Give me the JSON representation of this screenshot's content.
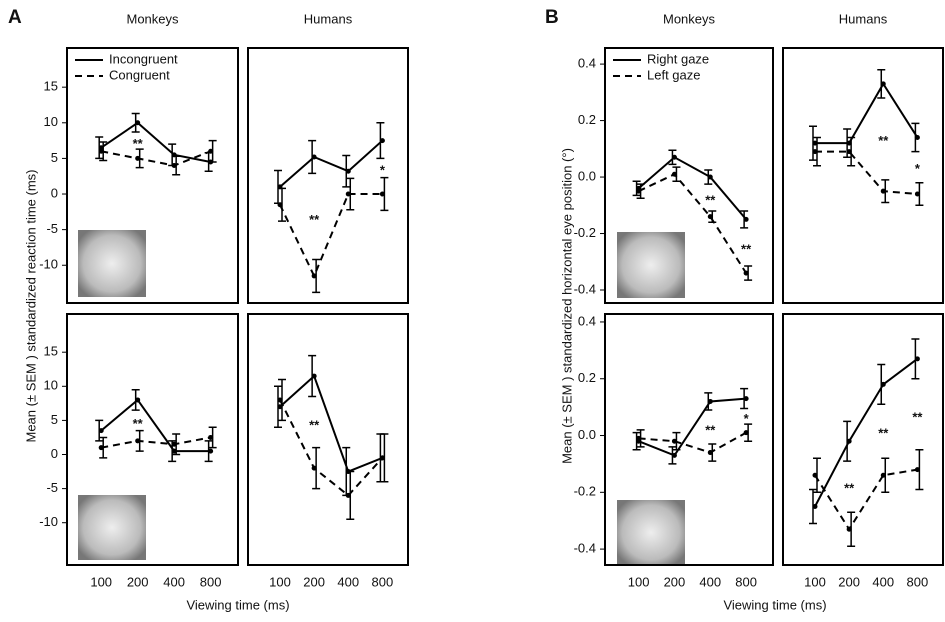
{
  "panels": [
    {
      "label": "A",
      "ylabel": "Mean (± SEM ) standardized reaction time (ms)",
      "xlabel": "Viewing time (ms)"
    },
    {
      "label": "B",
      "ylabel": "Mean (± SEM ) standardized horizontal eye position (°)",
      "xlabel": "Viewing time (ms)"
    }
  ],
  "chart_data": [
    {
      "type": "line",
      "title": "Monkeys",
      "categories": [
        "100",
        "200",
        "400",
        "800"
      ],
      "show_xticklabels": false,
      "color": "#000000",
      "ylim": [
        -15.3,
        20.5
      ],
      "yticks": [
        -10,
        -5,
        0,
        5,
        10,
        15
      ],
      "legend": "upper left",
      "series": [
        {
          "name": "Incongruent",
          "dashed": false,
          "values": [
            6.5,
            10,
            5.5,
            4.5
          ],
          "errors": [
            1.5,
            1.3,
            1.5,
            1.3
          ]
        },
        {
          "name": "Congruent",
          "dashed": true,
          "values": [
            6,
            5,
            4,
            6
          ],
          "errors": [
            1.3,
            1.3,
            1.3,
            1.5
          ]
        }
      ],
      "annotations": [
        {
          "text": "**",
          "x": "200"
        }
      ]
    },
    {
      "type": "line",
      "title": "Humans",
      "categories": [
        "100",
        "200",
        "400",
        "800"
      ],
      "show_xticklabels": false,
      "color": "#000000",
      "ylim": [
        -15.3,
        20.5
      ],
      "series": [
        {
          "dashed": false,
          "values": [
            1,
            5.2,
            3.2,
            7.5
          ],
          "errors": [
            2.3,
            2.3,
            2.2,
            2.5
          ]
        },
        {
          "dashed": true,
          "values": [
            -1.5,
            -11.5,
            0,
            0
          ],
          "errors": [
            2.3,
            2.3,
            2.2,
            2.3
          ]
        }
      ],
      "annotations": [
        {
          "text": "**",
          "x": "200"
        },
        {
          "text": "*",
          "x": "800"
        }
      ]
    },
    {
      "type": "line",
      "categories": [
        "100",
        "200",
        "400",
        "800"
      ],
      "show_xticklabels": true,
      "color": "#000000",
      "ylim": [
        -16.2,
        20.6
      ],
      "yticks": [
        -10,
        -5,
        0,
        5,
        10,
        15
      ],
      "series": [
        {
          "dashed": false,
          "values": [
            3.5,
            8,
            0.5,
            0.5
          ],
          "errors": [
            1.5,
            1.5,
            1.5,
            1.5
          ]
        },
        {
          "dashed": true,
          "values": [
            1,
            2,
            1.5,
            2.5
          ],
          "errors": [
            1.5,
            1.5,
            1.5,
            1.5
          ]
        }
      ],
      "annotations": [
        {
          "text": "**",
          "x": "200"
        }
      ]
    },
    {
      "type": "line",
      "categories": [
        "100",
        "200",
        "400",
        "800"
      ],
      "show_xticklabels": true,
      "color": "#000000",
      "ylim": [
        -16.2,
        20.6
      ],
      "series": [
        {
          "dashed": false,
          "values": [
            7,
            11.5,
            -2.5,
            -0.5
          ],
          "errors": [
            3,
            3,
            3.5,
            3.5
          ]
        },
        {
          "dashed": true,
          "values": [
            8,
            -2,
            -6,
            -0.5
          ],
          "errors": [
            3,
            3,
            3.5,
            3.5
          ]
        }
      ],
      "annotations": [
        {
          "text": "**",
          "x": "200"
        }
      ]
    },
    {
      "type": "line",
      "title": "Monkeys",
      "categories": [
        "100",
        "200",
        "400",
        "800"
      ],
      "show_xticklabels": false,
      "color": "#000000",
      "ylim": [
        -0.446,
        0.457
      ],
      "yticks": [
        -0.4,
        -0.2,
        {
          "value": 0,
          "label": "0.0"
        },
        0.2,
        0.4
      ],
      "legend": "upper left",
      "series": [
        {
          "name": "Right gaze",
          "dashed": false,
          "values": [
            -0.04,
            0.07,
            0.0,
            -0.15
          ],
          "errors": [
            0.025,
            0.025,
            0.025,
            0.03
          ]
        },
        {
          "name": "Left gaze",
          "dashed": true,
          "values": [
            -0.05,
            0.01,
            -0.14,
            -0.34
          ],
          "errors": [
            0.025,
            0.025,
            0.02,
            0.025
          ]
        }
      ],
      "annotations": [
        {
          "text": "**",
          "x": "400"
        },
        {
          "text": "**",
          "x": "800"
        }
      ]
    },
    {
      "type": "line",
      "title": "Humans",
      "categories": [
        "100",
        "200",
        "400",
        "800"
      ],
      "show_xticklabels": false,
      "color": "#000000",
      "ylim": [
        -0.446,
        0.457
      ],
      "series": [
        {
          "dashed": false,
          "values": [
            0.12,
            0.12,
            0.33,
            0.14
          ],
          "errors": [
            0.06,
            0.05,
            0.05,
            0.05
          ]
        },
        {
          "dashed": true,
          "values": [
            0.09,
            0.09,
            -0.05,
            -0.06
          ],
          "errors": [
            0.05,
            0.05,
            0.04,
            0.04
          ]
        }
      ],
      "annotations": [
        {
          "text": "**",
          "x": "400"
        },
        {
          "text": "*",
          "x": "800"
        }
      ]
    },
    {
      "type": "line",
      "categories": [
        "100",
        "200",
        "400",
        "800"
      ],
      "show_xticklabels": true,
      "color": "#000000",
      "ylim": [
        -0.456,
        0.428
      ],
      "yticks": [
        -0.4,
        -0.2,
        {
          "value": 0,
          "label": "0.0"
        },
        0.2,
        0.4
      ],
      "series": [
        {
          "dashed": false,
          "values": [
            -0.02,
            -0.07,
            0.12,
            0.13
          ],
          "errors": [
            0.03,
            0.03,
            0.03,
            0.035
          ]
        },
        {
          "dashed": true,
          "values": [
            -0.01,
            -0.02,
            -0.06,
            0.01
          ],
          "errors": [
            0.03,
            0.03,
            0.03,
            0.03
          ]
        }
      ],
      "annotations": [
        {
          "text": "**",
          "x": "400"
        },
        {
          "text": "*",
          "x": "800"
        }
      ]
    },
    {
      "type": "line",
      "categories": [
        "100",
        "200",
        "400",
        "800"
      ],
      "show_xticklabels": true,
      "color": "#000000",
      "ylim": [
        -0.456,
        0.428
      ],
      "series": [
        {
          "dashed": false,
          "values": [
            -0.25,
            -0.02,
            0.18,
            0.27
          ],
          "errors": [
            0.06,
            0.07,
            0.07,
            0.07
          ]
        },
        {
          "dashed": true,
          "values": [
            -0.14,
            -0.33,
            -0.14,
            -0.12
          ],
          "errors": [
            0.06,
            0.06,
            0.06,
            0.07
          ]
        }
      ],
      "annotations": [
        {
          "text": "**",
          "x": "200"
        },
        {
          "text": "**",
          "x": "400"
        },
        {
          "text": "**",
          "x": "800"
        }
      ]
    }
  ]
}
